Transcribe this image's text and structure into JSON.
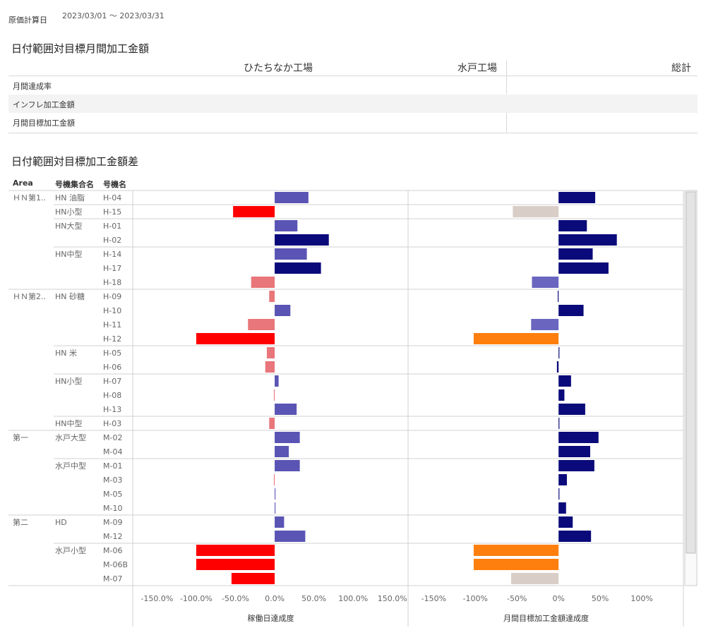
{
  "filter": {
    "label": "原価計算日",
    "value": "2023/03/01 ～ 2023/03/31"
  },
  "kpi": {
    "title": "日付範囲対目標月間加工金額",
    "columns": [
      "ひたちなか工場",
      "水戸工場",
      "総計"
    ],
    "rows": [
      "月間達成率",
      "インフレ加工金額",
      "月間目標加工金額"
    ]
  },
  "diff": {
    "title": "日付範囲対目標加工金額差",
    "headers": [
      "Area",
      "号機集合名",
      "号機名"
    ]
  },
  "chart_data": {
    "type": "bar",
    "orientation": "horizontal",
    "categories": [
      "H-04",
      "H-15",
      "H-01",
      "H-02",
      "H-14",
      "H-17",
      "H-18",
      "H-09",
      "H-10",
      "H-11",
      "H-12",
      "H-05",
      "H-06",
      "H-07",
      "H-08",
      "H-13",
      "H-03",
      "M-02",
      "M-04",
      "M-01",
      "M-03",
      "M-05",
      "M-10",
      "M-09",
      "M-12",
      "M-06",
      "M-06B",
      "M-07"
    ],
    "groups": [
      {
        "area": "ＨＮ第1..",
        "name": "HN 油脂",
        "start": 0
      },
      {
        "name": "HN小型",
        "start": 1
      },
      {
        "name": "HN大型",
        "start": 2
      },
      {
        "name": "HN中型",
        "start": 4
      },
      {
        "area": "ＨＮ第2..",
        "name": "HN 砂糖",
        "start": 7
      },
      {
        "name": "HN 米",
        "start": 11
      },
      {
        "name": "HN小型",
        "start": 13
      },
      {
        "name": "HN中型",
        "start": 16
      },
      {
        "area": "第一",
        "name": "水戸大型",
        "start": 17
      },
      {
        "name": "水戸中型",
        "start": 19
      },
      {
        "area": "第二",
        "name": "HD",
        "start": 23
      },
      {
        "name": "水戸小型",
        "start": 25
      }
    ],
    "panels": [
      {
        "xlabel": "稼働日達成度",
        "xlim": [
          -180,
          170
        ],
        "ticks": [
          -150,
          -100,
          -50,
          0,
          50,
          100,
          150
        ],
        "tick_labels": [
          "-150.0%",
          "-100.0%",
          "-50.0%",
          "0.0%",
          "50.0%",
          "100.0%",
          "150.0%"
        ],
        "values": [
          43,
          -53,
          29,
          69,
          41,
          59,
          -30,
          -7,
          20,
          -34,
          -100,
          -10,
          -12,
          5,
          -1,
          28,
          -7,
          32,
          18,
          32,
          -1,
          1,
          1,
          12,
          39,
          -100,
          -100,
          -55
        ],
        "colors": [
          "#5a54b4",
          "#ff0000",
          "#5a54b4",
          "#0a0a7a",
          "#5a54b4",
          "#0a0a7a",
          "#e8767a",
          "#e8767a",
          "#5a54b4",
          "#e8767a",
          "#ff0000",
          "#e8767a",
          "#e8767a",
          "#5a54b4",
          "#e8767a",
          "#5a54b4",
          "#e8767a",
          "#5a54b4",
          "#5a54b4",
          "#5a54b4",
          "#e8767a",
          "#5a54b4",
          "#5a54b4",
          "#5a54b4",
          "#5a54b4",
          "#ff0000",
          "#ff0000",
          "#ff0000"
        ]
      },
      {
        "xlabel": "月間目標加工金額達成度",
        "xlim": [
          -180,
          150
        ],
        "ticks": [
          -150,
          -100,
          -50,
          0,
          50,
          100
        ],
        "tick_labels": [
          "-150%",
          "-100%",
          "-50%",
          "0%",
          "50%",
          "100%"
        ],
        "values": [
          44,
          -55,
          34,
          70,
          41,
          60,
          -32,
          -1,
          30,
          -33,
          -102,
          1,
          -2,
          15,
          7,
          32,
          1,
          48,
          38,
          43,
          10,
          1,
          9,
          17,
          39,
          -102,
          -102,
          -57
        ],
        "colors": [
          "#0a0a7a",
          "#d9cdc8",
          "#0a0a7a",
          "#0a0a7a",
          "#0a0a7a",
          "#0a0a7a",
          "#6a66c0",
          "#0a0a7a",
          "#0a0a7a",
          "#6a66c0",
          "#ff7f0e",
          "#0a0a7a",
          "#0a0a7a",
          "#0a0a7a",
          "#0a0a7a",
          "#0a0a7a",
          "#0a0a7a",
          "#0a0a7a",
          "#0a0a7a",
          "#0a0a7a",
          "#0a0a7a",
          "#0a0a7a",
          "#0a0a7a",
          "#0a0a7a",
          "#0a0a7a",
          "#ff7f0e",
          "#ff7f0e",
          "#d9cdc8"
        ]
      }
    ]
  }
}
